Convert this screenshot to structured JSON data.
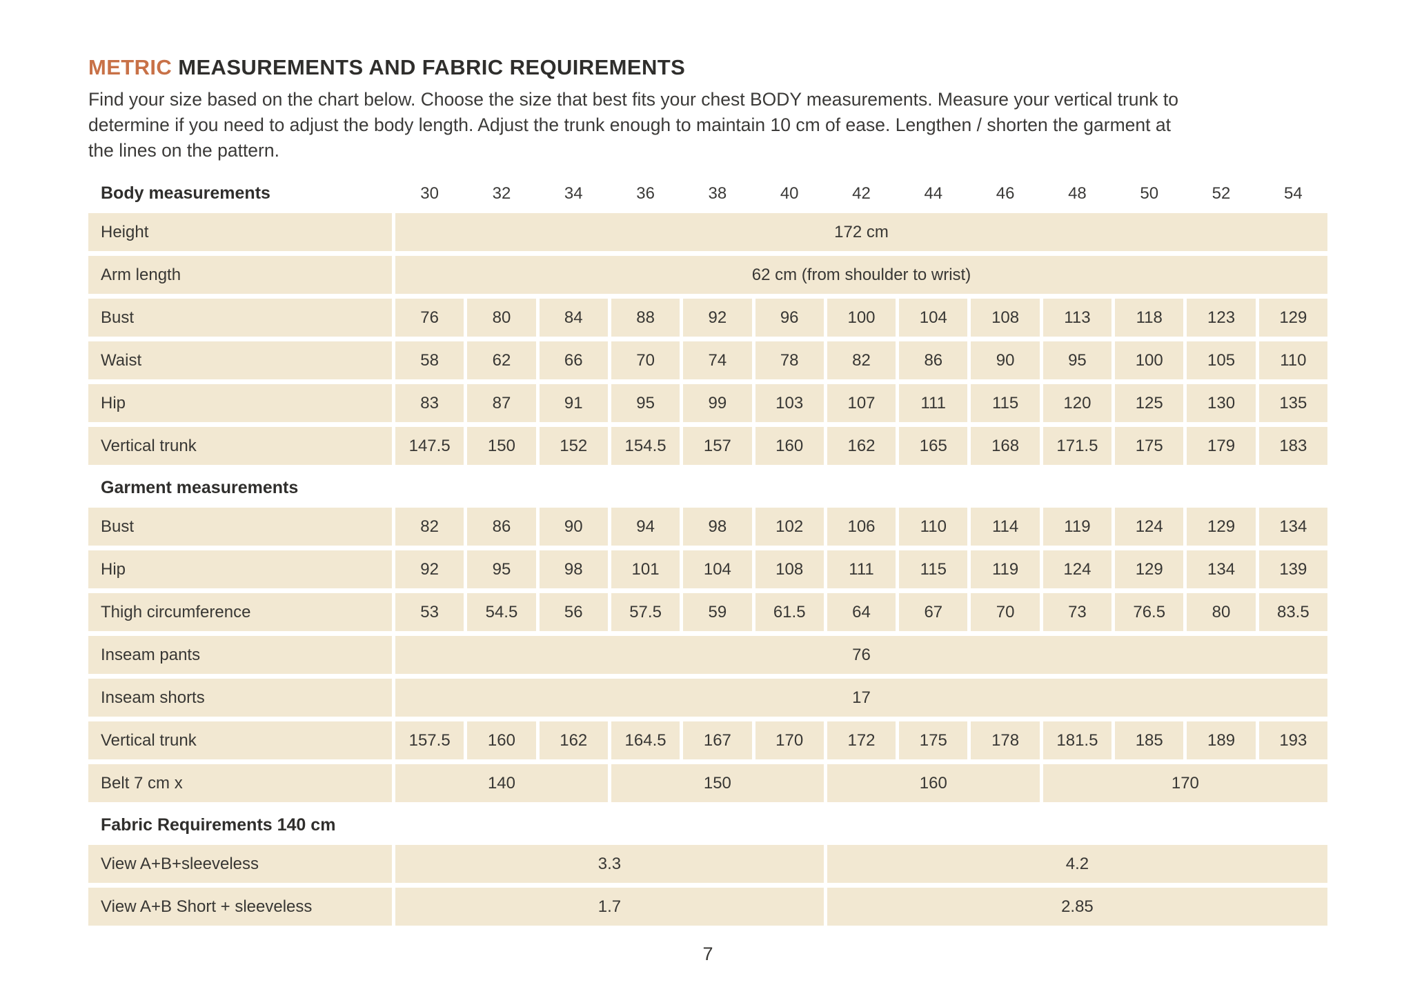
{
  "header": {
    "title_accent": "METRIC",
    "title_rest": " MEASUREMENTS AND FABRIC REQUIREMENTS",
    "intro": "Find your size based on the chart below. Choose the size that best fits your chest BODY measurements.  Measure your vertical trunk to\ndetermine if you need to adjust the body length. Adjust the trunk enough to maintain 10 cm of ease. Lengthen / shorten the garment at\nthe lines on the pattern."
  },
  "colors": {
    "accent_orange": "#c87147",
    "cell_beige": "#f2e8d2",
    "text_dark": "#2f2e2c",
    "text_body": "#3b3a38",
    "background": "#ffffff"
  },
  "table": {
    "sizes": [
      "30",
      "32",
      "34",
      "36",
      "38",
      "40",
      "42",
      "44",
      "46",
      "48",
      "50",
      "52",
      "54"
    ],
    "sections": [
      {
        "header": "Body measurements",
        "show_sizes": true,
        "rows": [
          {
            "label": "Height",
            "spans": [
              {
                "cols": 13,
                "value": "172 cm"
              }
            ]
          },
          {
            "label": "Arm length",
            "spans": [
              {
                "cols": 13,
                "value": "62 cm (from shoulder to wrist)"
              }
            ]
          },
          {
            "label": "Bust",
            "values": [
              "76",
              "80",
              "84",
              "88",
              "92",
              "96",
              "100",
              "104",
              "108",
              "113",
              "118",
              "123",
              "129"
            ]
          },
          {
            "label": "Waist",
            "values": [
              "58",
              "62",
              "66",
              "70",
              "74",
              "78",
              "82",
              "86",
              "90",
              "95",
              "100",
              "105",
              "110"
            ]
          },
          {
            "label": "Hip",
            "values": [
              "83",
              "87",
              "91",
              "95",
              "99",
              "103",
              "107",
              "111",
              "115",
              "120",
              "125",
              "130",
              "135"
            ]
          },
          {
            "label": "Vertical trunk",
            "values": [
              "147.5",
              "150",
              "152",
              "154.5",
              "157",
              "160",
              "162",
              "165",
              "168",
              "171.5",
              "175",
              "179",
              "183"
            ]
          }
        ]
      },
      {
        "header": "Garment measurements",
        "show_sizes": false,
        "rows": [
          {
            "label": "Bust",
            "values": [
              "82",
              "86",
              "90",
              "94",
              "98",
              "102",
              "106",
              "110",
              "114",
              "119",
              "124",
              "129",
              "134"
            ]
          },
          {
            "label": "Hip",
            "values": [
              "92",
              "95",
              "98",
              "101",
              "104",
              "108",
              "111",
              "115",
              "119",
              "124",
              "129",
              "134",
              "139"
            ]
          },
          {
            "label": "Thigh circumference",
            "values": [
              "53",
              "54.5",
              "56",
              "57.5",
              "59",
              "61.5",
              "64",
              "67",
              "70",
              "73",
              "76.5",
              "80",
              "83.5"
            ]
          },
          {
            "label": "Inseam pants",
            "spans": [
              {
                "cols": 13,
                "value": "76"
              }
            ]
          },
          {
            "label": "Inseam shorts",
            "spans": [
              {
                "cols": 13,
                "value": "17"
              }
            ]
          },
          {
            "label": "Vertical trunk",
            "values": [
              "157.5",
              "160",
              "162",
              "164.5",
              "167",
              "170",
              "172",
              "175",
              "178",
              "181.5",
              "185",
              "189",
              "193"
            ]
          },
          {
            "label": "Belt 7 cm x",
            "spans": [
              {
                "cols": 3,
                "value": "140"
              },
              {
                "cols": 3,
                "value": "150"
              },
              {
                "cols": 3,
                "value": "160"
              },
              {
                "cols": 4,
                "value": "170"
              }
            ]
          }
        ]
      },
      {
        "header": "Fabric Requirements 140 cm",
        "show_sizes": false,
        "rows": [
          {
            "label": "View A+B+sleeveless",
            "spans": [
              {
                "cols": 6,
                "value": "3.3"
              },
              {
                "cols": 7,
                "value": "4.2"
              }
            ]
          },
          {
            "label": "View A+B Short + sleeveless",
            "spans": [
              {
                "cols": 6,
                "value": "1.7"
              },
              {
                "cols": 7,
                "value": "2.85"
              }
            ]
          }
        ]
      }
    ]
  },
  "footer": {
    "page_number": "7"
  }
}
